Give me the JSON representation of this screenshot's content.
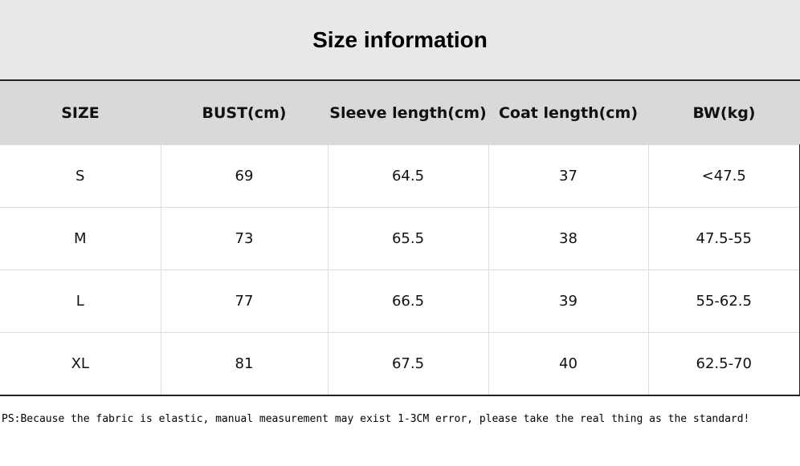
{
  "title": "Size information",
  "table": {
    "header": [
      "SIZE",
      "BUST(cm)",
      "Sleeve length(cm)",
      "Coat length(cm)",
      "BW(kg)"
    ],
    "rows": [
      [
        "S",
        "69",
        "64.5",
        "37",
        "<47.5"
      ],
      [
        "M",
        "73",
        "65.5",
        "38",
        "47.5-55"
      ],
      [
        "L",
        "77",
        "66.5",
        "39",
        "55-62.5"
      ],
      [
        "XL",
        "81",
        "67.5",
        "40",
        "62.5-70"
      ]
    ]
  },
  "note": "PS:Because the fabric is elastic, manual measurement may exist 1-3CM error, please take the real thing as the standard!"
}
